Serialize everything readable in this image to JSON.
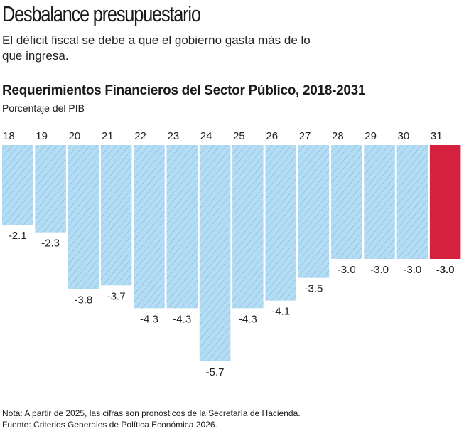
{
  "header": {
    "title": "Desbalance presupuestario",
    "subtitle": "El déficit fiscal se debe a que el gobierno gasta más de lo que ingresa."
  },
  "chart_data": {
    "type": "bar",
    "title": "Requerimientos Financieros del Sector Público, 2018-2031",
    "ylabel": "Porcentaje del PIB",
    "categories": [
      "18",
      "19",
      "20",
      "21",
      "22",
      "23",
      "24",
      "25",
      "26",
      "27",
      "28",
      "29",
      "30",
      "31"
    ],
    "values": [
      -2.1,
      -2.3,
      -3.8,
      -3.7,
      -4.3,
      -4.3,
      -5.7,
      -4.3,
      -4.1,
      -3.5,
      -3.0,
      -3.0,
      -3.0,
      -3.0
    ],
    "value_labels": [
      "-2.1",
      "-2.3",
      "-3.8",
      "-3.7",
      "-4.3",
      "-4.3",
      "-5.7",
      "-4.3",
      "-4.1",
      "-3.5",
      "-3.0",
      "-3.0",
      "-3.0",
      "-3.0"
    ],
    "ylim": [
      -5.7,
      0
    ],
    "grid": false,
    "colors": {
      "default": "#b3dcf5",
      "hatch": "#7fa9c4",
      "highlight": "#d4213d"
    },
    "highlight_index": 13
  },
  "footer": {
    "note": "Nota: A partir de 2025, las cifras son pronósticos de la Secretaría de Hacienda.",
    "source": "Fuente: Criterios Generales de Política Económica 2026."
  }
}
